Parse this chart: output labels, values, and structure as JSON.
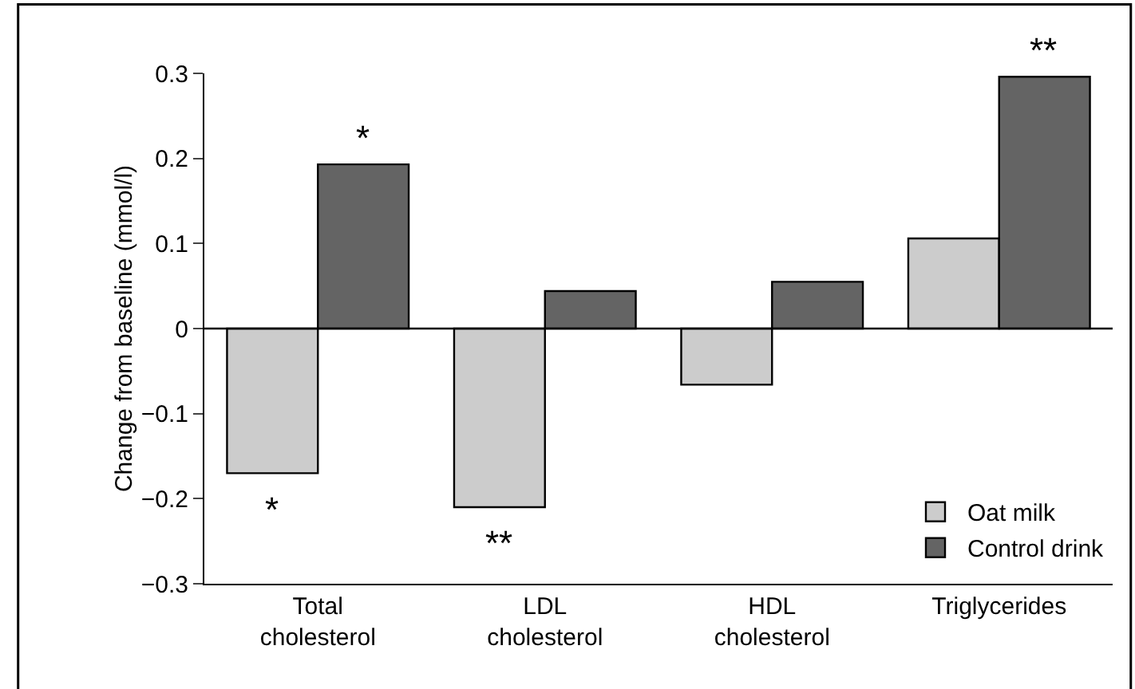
{
  "chart_data": {
    "type": "bar",
    "ylabel": "Change from baseline (mmol/l)",
    "categories": [
      "Total cholesterol",
      "LDL cholesterol",
      "HDL cholesterol",
      "Triglycerides"
    ],
    "series": [
      {
        "name": "Oat milk",
        "color": "#cccccc",
        "values": [
          -0.17,
          -0.21,
          -0.066,
          0.106
        ]
      },
      {
        "name": "Control drink",
        "color": "#646464",
        "values": [
          0.193,
          0.044,
          0.055,
          0.296
        ]
      }
    ],
    "ylim": [
      -0.3,
      0.3
    ],
    "yticks": [
      0.3,
      0.2,
      0.1,
      0,
      {
        "value": -0.1,
        "label": "−0.1"
      },
      {
        "value": -0.2,
        "label": "−0.2"
      },
      {
        "value": -0.3,
        "label": "−0.3"
      }
    ],
    "grid": false,
    "legend": "bottom right",
    "ref_lines": [
      {
        "axis": "y",
        "value": 0
      }
    ],
    "annotations": [
      {
        "text": "*",
        "x": "Total cholesterol",
        "y": -0.17
      },
      {
        "text": "*",
        "x": "Total cholesterol",
        "y": 0.193
      },
      {
        "text": "**",
        "x": "LDL cholesterol",
        "y": -0.21
      },
      {
        "text": "**",
        "x": "Triglycerides",
        "y": 0.296
      }
    ]
  }
}
